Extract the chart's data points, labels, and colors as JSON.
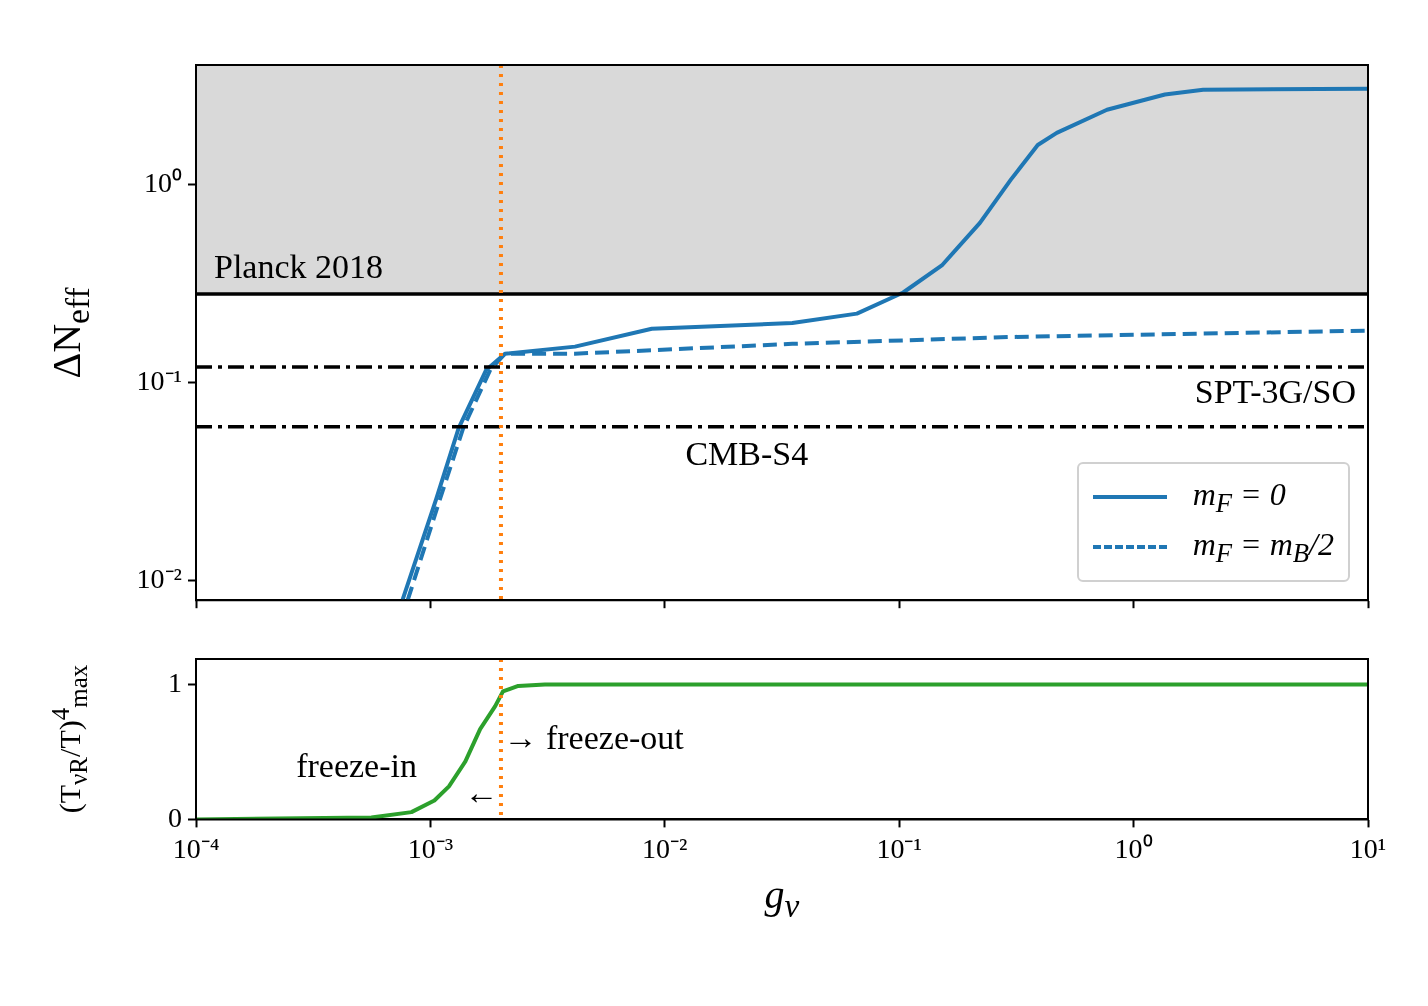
{
  "chart_data": [
    {
      "type": "line",
      "ylabel": "ΔN$_{eff}$",
      "log": "xy",
      "xlim": [
        0.0001,
        10
      ],
      "ylim": [
        0.008,
        4
      ],
      "xticks": [
        {
          "value": 0.0001,
          "label": null
        },
        {
          "value": 0.001,
          "label": null
        },
        {
          "value": 0.01,
          "label": null
        },
        {
          "value": 0.1,
          "label": null
        },
        {
          "value": 1,
          "label": null
        },
        {
          "value": 10,
          "label": null
        }
      ],
      "yticks": [
        {
          "value": 0.01,
          "label": "10⁻²"
        },
        {
          "value": 0.1,
          "label": "10⁻¹"
        },
        {
          "value": 1,
          "label": "10⁰"
        }
      ],
      "tick_labels": "y",
      "legend": "bottom right",
      "series": [
        {
          "name": "m$_{F}$ = 0",
          "color": "#1f77b4",
          "line_style": "solid",
          "x": [
            0.00076,
            0.00106,
            0.00132,
            0.00173,
            0.00208,
            0.00414,
            0.0088,
            0.035,
            0.066,
            0.104,
            0.152,
            0.221,
            0.3,
            0.39,
            0.47,
            0.77,
            1.36,
            1.98,
            10
          ],
          "values": [
            0.008,
            0.026,
            0.059,
            0.116,
            0.14,
            0.152,
            0.187,
            0.2,
            0.223,
            0.285,
            0.39,
            0.64,
            1.06,
            1.58,
            1.82,
            2.38,
            2.84,
            3.0,
            3.04
          ]
        },
        {
          "name": "m$_{F}$ = m$_{B}$/2",
          "color": "#1f77b4",
          "line_style": "dashed",
          "x": [
            0.0008,
            0.0011,
            0.00138,
            0.0018,
            0.00208,
            0.00414,
            0.035,
            0.3,
            10
          ],
          "values": [
            0.008,
            0.026,
            0.059,
            0.116,
            0.14,
            0.14,
            0.157,
            0.17,
            0.183
          ]
        }
      ],
      "bands": [
        {
          "axis": "y",
          "from": 0.28,
          "to": 4,
          "color": "#d9d9d9"
        }
      ],
      "ref_lines": [
        {
          "axis": "y",
          "value": 0.28,
          "label": "Planck 2018",
          "color": "#000000",
          "line_style": "solid"
        },
        {
          "axis": "y",
          "value": 0.12,
          "label": "SPT-3G/SO",
          "color": "#000000",
          "line_style": "dashdot"
        },
        {
          "axis": "y",
          "value": 0.06,
          "label": "CMB-S4",
          "color": "#000000",
          "line_style": "dashdot"
        },
        {
          "axis": "x",
          "value": 0.002,
          "color": "#ff7f0e",
          "line_style": "dotted"
        }
      ]
    },
    {
      "type": "line",
      "xlabel": "g$_{ν}$",
      "ylabel": "(T$_{νR}$/T)$^{4}$$_{max}$",
      "log": "x",
      "xlim": [
        0.0001,
        10
      ],
      "ylim": [
        0,
        1.19
      ],
      "xticks": [
        {
          "value": 0.0001,
          "label": "10⁻⁴"
        },
        {
          "value": 0.001,
          "label": "10⁻³"
        },
        {
          "value": 0.01,
          "label": "10⁻²"
        },
        {
          "value": 0.1,
          "label": "10⁻¹"
        },
        {
          "value": 1,
          "label": "10⁰"
        },
        {
          "value": 10,
          "label": "10¹"
        }
      ],
      "yticks": [
        0,
        1
      ],
      "series": [
        {
          "color": "#2ca02c",
          "x": [
            0.0001,
            0.00056,
            0.00083,
            0.00104,
            0.0012,
            0.00141,
            0.00163,
            0.00189,
            0.00204,
            0.00237,
            0.00308,
            10
          ],
          "values": [
            0,
            0.014,
            0.054,
            0.14,
            0.245,
            0.43,
            0.67,
            0.84,
            0.95,
            0.99,
            1.0,
            1.0
          ]
        }
      ],
      "ref_lines": [
        {
          "axis": "x",
          "value": 0.002,
          "color": "#ff7f0e",
          "line_style": "dotted"
        }
      ],
      "annotations": [
        "freeze-in",
        {
          "text": "←",
          "x": 0.00195,
          "y": 0.18
        },
        {
          "text": "→ freeze-out",
          "x": 0.00205,
          "y": 0.59
        }
      ]
    }
  ]
}
